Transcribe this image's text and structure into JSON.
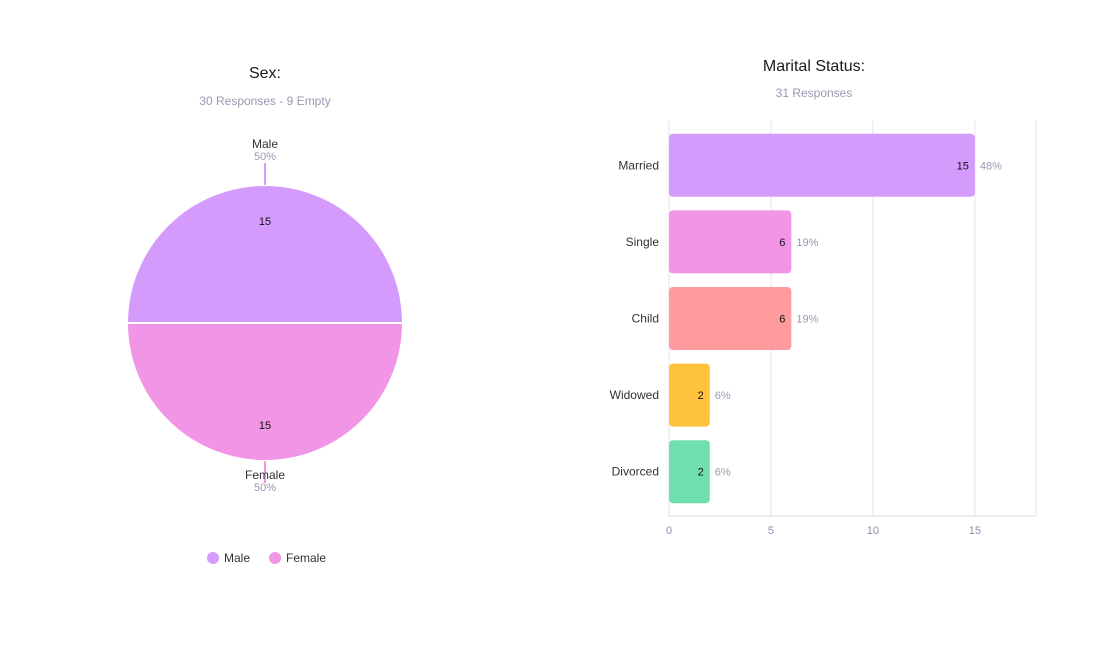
{
  "chart_data": [
    {
      "type": "pie",
      "title": "Sex:",
      "subtitle": "30 Responses - 9 Empty",
      "slices": [
        {
          "label": "Male",
          "value": 15,
          "percent": "50%",
          "color": "#d49bfd"
        },
        {
          "label": "Female",
          "value": 15,
          "percent": "50%",
          "color": "#f295e6"
        }
      ],
      "legend": {
        "placement": "bottom",
        "entries": [
          "Male",
          "Female"
        ]
      }
    },
    {
      "type": "bar",
      "orientation": "horizontal",
      "title": "Marital Status:",
      "subtitle": "31 Responses",
      "categories": [
        "Married",
        "Single",
        "Child",
        "Widowed",
        "Divorced"
      ],
      "values": [
        15,
        6,
        6,
        2,
        2
      ],
      "percents": [
        "48%",
        "19%",
        "19%",
        "6%",
        "6%"
      ],
      "colors": [
        "#d49bfd",
        "#f295e6",
        "#ff9a9e",
        "#ffc23d",
        "#6fe0ad"
      ],
      "xticks": [
        "0",
        "5",
        "10",
        "15"
      ],
      "xlim": [
        0,
        18
      ],
      "grid": true
    }
  ]
}
